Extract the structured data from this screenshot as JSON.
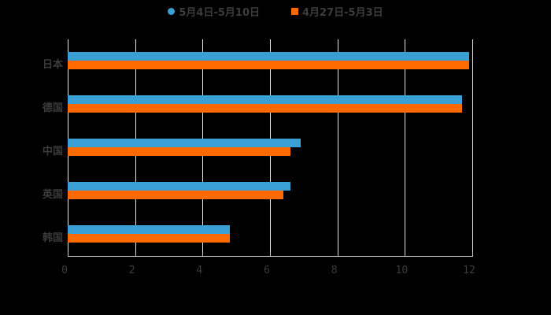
{
  "legend": [
    {
      "label": "5月4日-5月10日",
      "color": "#3a9fd5",
      "shape": "circle"
    },
    {
      "label": "4月27日-5月3日",
      "color": "#ff6a00",
      "shape": "square"
    }
  ],
  "chart_data": {
    "type": "bar",
    "orientation": "horizontal",
    "title": "",
    "categories": [
      "日本",
      "德国",
      "中国",
      "英国",
      "韩国"
    ],
    "series": [
      {
        "name": "5月4日-5月10日",
        "color": "#3a9fd5",
        "values": [
          11.9,
          11.7,
          6.9,
          6.6,
          4.8
        ]
      },
      {
        "name": "4月27日-5月3日",
        "color": "#ff6a00",
        "values": [
          11.9,
          11.7,
          6.6,
          6.4,
          4.8
        ]
      }
    ],
    "xlabel": "",
    "ylabel": "",
    "xlim": [
      0,
      12
    ],
    "xticks": [
      "0",
      "2",
      "4",
      "6",
      "8",
      "10",
      "12"
    ],
    "grid": true,
    "legend_position": "top"
  }
}
